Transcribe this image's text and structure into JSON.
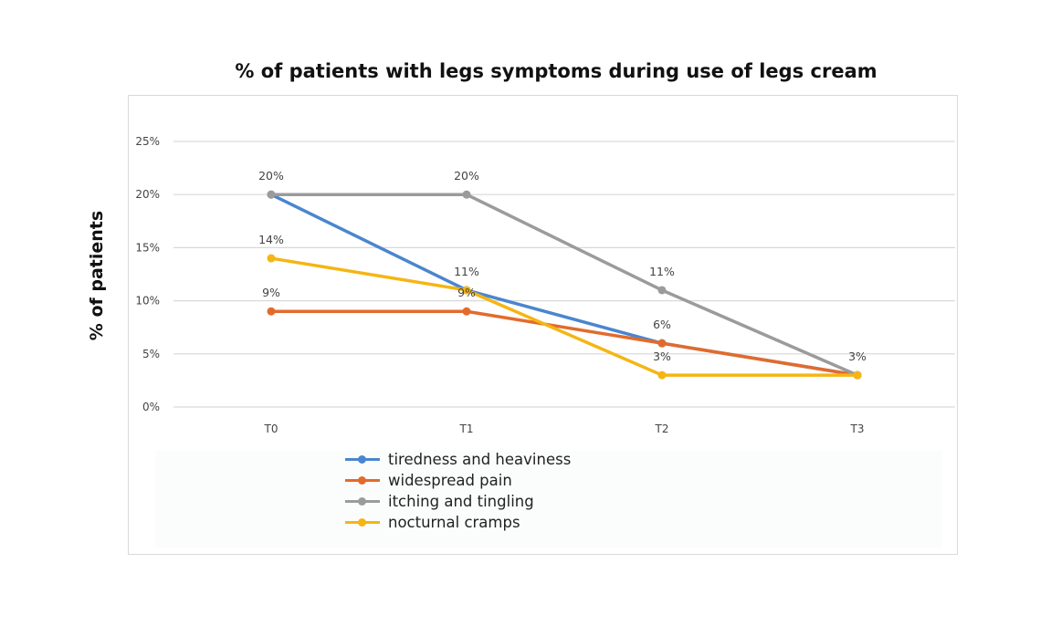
{
  "chart_data": {
    "type": "line",
    "title": "% of patients with legs symptoms during use of legs cream",
    "ylabel": "% of patients",
    "xlabel": "",
    "categories": [
      "T0",
      "T1",
      "T2",
      "T3"
    ],
    "ylim": [
      0,
      25
    ],
    "yticks": [
      0,
      5,
      10,
      15,
      20,
      25
    ],
    "ytick_labels": [
      "0%",
      "5%",
      "10%",
      "15%",
      "20%",
      "25%"
    ],
    "grid": "horizontal",
    "legend_position": "bottom",
    "series": [
      {
        "name": "tiredness and heaviness",
        "color": "#4a86cf",
        "values": [
          20,
          11,
          6,
          3
        ]
      },
      {
        "name": "widespread pain",
        "color": "#e26b2b",
        "values": [
          9,
          9,
          6,
          3
        ]
      },
      {
        "name": "itching and tingling",
        "color": "#9b9b9b",
        "values": [
          20,
          20,
          11,
          3
        ]
      },
      {
        "name": "nocturnal cramps",
        "color": "#f5b513",
        "values": [
          14,
          11,
          3,
          3
        ]
      }
    ],
    "data_labels": [
      {
        "category": "T0",
        "value": 20,
        "text": "20%"
      },
      {
        "category": "T0",
        "value": 14,
        "text": "14%"
      },
      {
        "category": "T0",
        "value": 9,
        "text": "9%"
      },
      {
        "category": "T1",
        "value": 20,
        "text": "20%"
      },
      {
        "category": "T1",
        "value": 11,
        "text": "11%"
      },
      {
        "category": "T1",
        "value": 9,
        "text": "9%"
      },
      {
        "category": "T2",
        "value": 11,
        "text": "11%"
      },
      {
        "category": "T2",
        "value": 6,
        "text": "6%"
      },
      {
        "category": "T2",
        "value": 3,
        "text": "3%"
      },
      {
        "category": "T3",
        "value": 3,
        "text": "3%"
      }
    ]
  }
}
